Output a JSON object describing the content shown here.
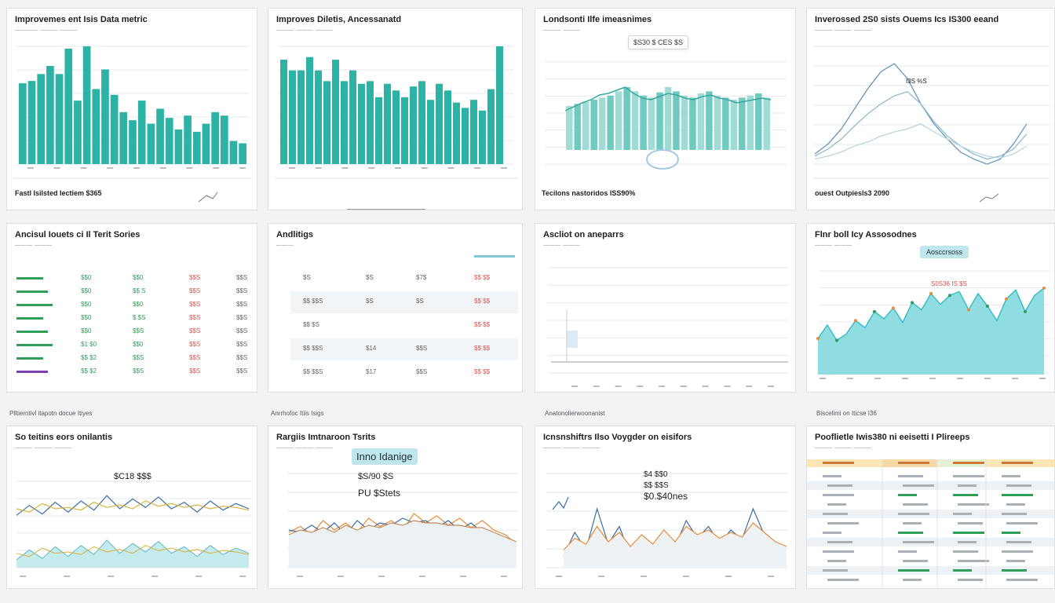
{
  "colors": {
    "teal": "#2db3a6",
    "teal_light": "#9fdcd6",
    "aqua": "#5cc9cf",
    "orange": "#e98b3a",
    "blue": "#3a6ea5",
    "gold": "#d9b23c",
    "green": "#2e9e58",
    "red": "#d9534f"
  },
  "cards": [
    {
      "title": "Improvemes ent Isis Data metric",
      "sub": "———— ——— ———",
      "footer_left": "Fastl Isilsted Iectiem $365",
      "footer_right": ""
    },
    {
      "title": "Improves Diletis, Ancessanatd",
      "sub": "——— ——— ———",
      "footer_left": "",
      "footer_right": ""
    },
    {
      "title": "Londsonti Ilfe imeasnimes",
      "sub": "——— ———",
      "footer_left": "Tecilons nastoridos ISS90%",
      "footer_right": ""
    },
    {
      "title": "Inverossed 2S0 sists Ouems Ics IS300 eeand",
      "sub": "——— ——— ———",
      "footer_left": "ouest Outpiesls3 2090",
      "footer_right": ""
    },
    {
      "title": "Ancisul Iouets ci Il Terit Sories",
      "sub": "——— ———",
      "footer_left": "Plltierntivl itapotn docue Itiyes",
      "footer_right": ""
    },
    {
      "title": "Andlitigs",
      "sub": "———",
      "footer_left": "Anrrhofoc Itiis Isigs",
      "footer_right": ""
    },
    {
      "title": "Ascliot on aneparrs",
      "sub": "——— ———",
      "footer_left": "Anatonolierwoonanist",
      "footer_right": ""
    },
    {
      "title": "Flnr boll Icy Assosodnes",
      "sub": "——— ———",
      "footer_left": "Biscelimi on Iticse I36",
      "footer_right": ""
    },
    {
      "title": "So teitins eors onilantis",
      "sub": "——— ——— ———",
      "footer_left": "",
      "footer_right": ""
    },
    {
      "title": "Rargiis Imtnaroon Tsrits",
      "sub": "——— ——— ———",
      "footer_left": "",
      "footer_right": ""
    },
    {
      "title": "Icnsnshiftrs Ilso Voygder on eisifors",
      "sub": "——— ——— ———",
      "footer_left": "",
      "footer_right": ""
    },
    {
      "title": "Pooflietle Iwis380 ni eeisetti I Plireeps",
      "sub": "——— ——— ———",
      "footer_left": "",
      "footer_right": ""
    }
  ],
  "annotations": {
    "c3_callout": "$S30 $ CES $S",
    "c4_callout": "I3S %S",
    "c8_pill": "Aosccrsoss",
    "c8_label": "S0S36 IS $S",
    "c9_label": "$C18 $$$",
    "c10_pill": "Inno Idanige",
    "c10_label1": "$S/90 $S",
    "c10_label2": "PU $Stets",
    "c11_label1": "$4 $$0",
    "c11_label2": "$$ $$S",
    "c11_label3": "$0.$40nes"
  },
  "table_c5": {
    "rows": [
      [
        "$$0",
        "$$0",
        "$$S",
        "$$S"
      ],
      [
        "$$0",
        "$$ S",
        "$$S",
        "$$S"
      ],
      [
        "$$0",
        "$$0",
        "$$S",
        "$$S"
      ],
      [
        "$$0",
        "$ $S",
        "$$S",
        "$$S"
      ],
      [
        "$$0",
        "$$S",
        "$$S",
        "$$S"
      ],
      [
        "$1 $0",
        "$$0",
        "$$S",
        "$$S"
      ],
      [
        "$$ $2",
        "$$S",
        "$$S",
        "$$S"
      ],
      [
        "$$ $2",
        "$$S",
        "$$S",
        "$$S"
      ]
    ]
  },
  "table_c6": {
    "rows": [
      [
        "$S",
        "$S",
        "$7$",
        "$$ $$"
      ],
      [
        "$$ $$S",
        "$S",
        "$S",
        "$$ $$"
      ],
      [
        "$$ $S",
        "",
        "",
        "$$ $$"
      ],
      [
        "$$ $$S",
        "$14",
        "$$S",
        "$$ $$"
      ],
      [
        "$$ $$S",
        "$17",
        "$$S",
        "$$ $$"
      ]
    ]
  },
  "chart_data": [
    {
      "type": "bar",
      "title": "Improvemes ent Isis Data metric",
      "values": [
        70,
        72,
        78,
        85,
        78,
        100,
        55,
        102,
        65,
        82,
        60,
        45,
        38,
        55,
        35,
        48,
        40,
        30,
        42,
        28,
        35,
        45,
        42,
        20,
        18
      ]
    },
    {
      "type": "bar",
      "title": "Improves Diletis, Ancessanatd",
      "values": [
        78,
        70,
        70,
        80,
        70,
        62,
        78,
        62,
        70,
        60,
        62,
        50,
        60,
        55,
        50,
        58,
        62,
        48,
        60,
        55,
        46,
        42,
        48,
        40,
        56,
        88
      ]
    },
    {
      "type": "bar",
      "title": "Londsonti Ilfe imeasnimes",
      "values": [
        42,
        44,
        46,
        48,
        50,
        52,
        56,
        60,
        56,
        52,
        50,
        55,
        60,
        56,
        52,
        50,
        54,
        56,
        52,
        50,
        48,
        50,
        52,
        54,
        50
      ]
    },
    {
      "type": "line",
      "title": "Inverossed 2S0 sists Ouems Ics IS300 eeand",
      "series": [
        {
          "values": [
            10,
            20,
            35,
            55,
            75,
            92,
            100,
            85,
            60,
            40,
            25,
            12,
            5,
            0,
            5,
            20,
            40
          ]
        },
        {
          "values": [
            8,
            15,
            25,
            38,
            50,
            60,
            68,
            72,
            60,
            42,
            28,
            18,
            10,
            5,
            8,
            15,
            30
          ]
        },
        {
          "values": [
            5,
            8,
            12,
            18,
            22,
            28,
            32,
            35,
            40,
            32,
            25,
            18,
            12,
            8,
            6,
            10,
            18
          ]
        }
      ]
    },
    {
      "type": "line",
      "title": "Ascliot on aneparrs",
      "series": [
        {
          "values": [
            0,
            0,
            0,
            0,
            0,
            0
          ]
        }
      ]
    },
    {
      "type": "area",
      "title": "Flnr boll Icy Assosodnes",
      "values": [
        40,
        55,
        38,
        45,
        60,
        52,
        70,
        62,
        74,
        58,
        80,
        72,
        90,
        78,
        88,
        92,
        72,
        90,
        76,
        60,
        84,
        94,
        70,
        88,
        96
      ]
    },
    {
      "type": "line",
      "title": "So teitins eors onilantis",
      "series": [
        {
          "values": [
            50,
            65,
            52,
            70,
            55,
            72,
            58,
            80,
            60,
            75,
            62,
            78,
            60,
            70,
            55,
            72,
            58,
            68,
            60
          ]
        },
        {
          "values": [
            60,
            55,
            68,
            60,
            62,
            58,
            70,
            62,
            66,
            60,
            72,
            64,
            68,
            62,
            66,
            60,
            64,
            62,
            58
          ]
        }
      ]
    },
    {
      "type": "line",
      "title": "Rargiis Imtnaroon Tsrits",
      "series": [
        {
          "values": [
            50,
            55,
            48,
            60,
            52,
            58,
            50,
            62,
            55,
            60,
            52,
            66,
            58,
            64,
            56,
            62,
            54,
            60,
            52,
            48,
            40
          ]
        },
        {
          "values": [
            52,
            50,
            56,
            50,
            58,
            48,
            60,
            52,
            58,
            56,
            62,
            58,
            60,
            54,
            60,
            52,
            58,
            50,
            48,
            44,
            38
          ]
        },
        {
          "values": [
            48,
            52,
            50,
            54,
            50,
            56,
            52,
            56,
            54,
            58,
            56,
            60,
            58,
            58,
            56,
            56,
            54,
            54,
            50,
            46,
            42
          ]
        }
      ]
    },
    {
      "type": "line",
      "title": "Icnsnshiftrs Ilso Voygder on eisifors",
      "series": [
        {
          "values": [
            30,
            50,
            35,
            70,
            40,
            55,
            30,
            45,
            35,
            50,
            38,
            60,
            45,
            55,
            40,
            52,
            44,
            70,
            48,
            40,
            36
          ]
        },
        {
          "values": [
            35,
            45,
            40,
            55,
            42,
            50,
            38,
            48,
            40,
            52,
            42,
            55,
            48,
            52,
            45,
            50,
            46,
            58,
            50,
            42,
            38
          ]
        }
      ]
    }
  ]
}
